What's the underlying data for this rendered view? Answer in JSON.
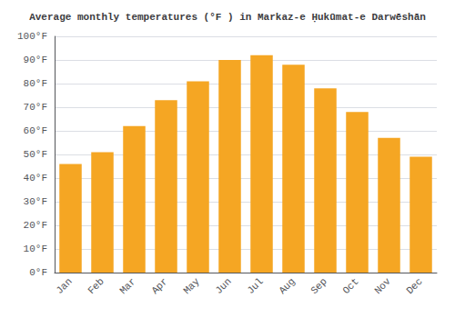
{
  "chart_data": {
    "type": "bar",
    "title": "Average monthly temperatures (°F ) in Markaz-e Ḥukūmat-e Darwēshān",
    "categories": [
      "Jan",
      "Feb",
      "Mar",
      "Apr",
      "May",
      "Jun",
      "Jul",
      "Aug",
      "Sep",
      "Oct",
      "Nov",
      "Dec"
    ],
    "values": [
      46,
      51,
      62,
      73,
      81,
      90,
      92,
      88,
      78,
      68,
      57,
      49
    ],
    "color": "#F5A623",
    "ylim": [
      0,
      100
    ],
    "yticks": [
      {
        "value": 0,
        "label": "0°F"
      },
      {
        "value": 10,
        "label": "10°F"
      },
      {
        "value": 20,
        "label": "20°F"
      },
      {
        "value": 30,
        "label": "30°F"
      },
      {
        "value": 40,
        "label": "40°F"
      },
      {
        "value": 50,
        "label": "50°F"
      },
      {
        "value": 60,
        "label": "60°F"
      },
      {
        "value": 70,
        "label": "70°F"
      },
      {
        "value": 80,
        "label": "80°F"
      },
      {
        "value": 90,
        "label": "90°F"
      },
      {
        "value": 100,
        "label": "100°F"
      }
    ],
    "grid": true
  }
}
